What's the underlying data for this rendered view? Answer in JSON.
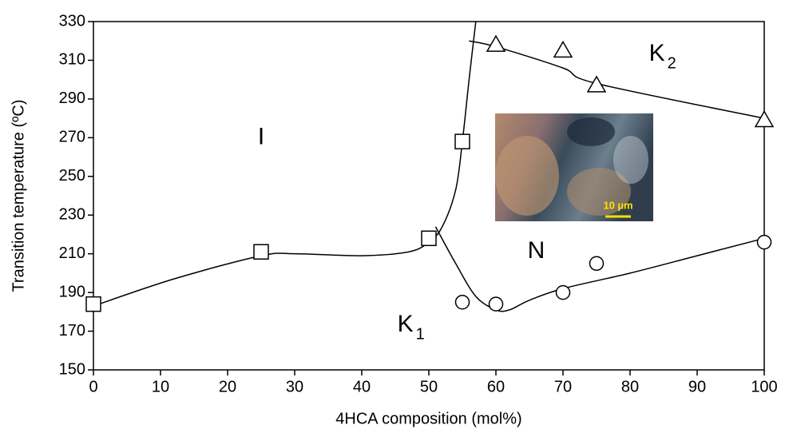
{
  "chart_data": {
    "type": "scatter",
    "xlabel": "4HCA composition (mol%)",
    "ylabel": "Transition temperature (ºC)",
    "xlim": [
      0,
      100
    ],
    "xticks": [
      0,
      10,
      20,
      30,
      40,
      50,
      60,
      70,
      80,
      90,
      100
    ],
    "ylim": [
      150,
      330
    ],
    "yticks": [
      150,
      170,
      190,
      210,
      230,
      250,
      270,
      290,
      310,
      330
    ],
    "series": [
      {
        "marker": "square",
        "color": "#000000",
        "x": [
          0,
          25,
          50,
          55
        ],
        "values": [
          184,
          211,
          218,
          268
        ]
      },
      {
        "marker": "circle",
        "color": "#000000",
        "x": [
          55,
          60,
          70,
          75,
          100
        ],
        "values": [
          185,
          184,
          190,
          205,
          216
        ]
      },
      {
        "marker": "triangle",
        "color": "#000000",
        "x": [
          60,
          70,
          75,
          100
        ],
        "values": [
          318,
          315,
          297,
          279
        ]
      }
    ],
    "lines": [
      {
        "x": [
          0,
          12,
          25,
          30,
          40,
          47,
          50,
          52,
          54,
          55,
          56,
          57
        ],
        "values": [
          183,
          197,
          209,
          210,
          209,
          211,
          216,
          224,
          243,
          268,
          300,
          330
        ]
      },
      {
        "x": [
          51,
          54,
          57,
          60,
          62,
          65,
          70,
          80,
          90,
          100
        ],
        "values": [
          224,
          205,
          188,
          181,
          181,
          186,
          192,
          200,
          209,
          218
        ]
      },
      {
        "x": [
          56,
          60,
          70,
          75,
          100
        ],
        "values": [
          320,
          317,
          306,
          298,
          280
        ]
      }
    ],
    "annotations": [
      {
        "text": "I",
        "x": 25,
        "y": 270
      },
      {
        "text": "N",
        "x": 66,
        "y": 211
      },
      {
        "text": "K",
        "sub": "1",
        "x": 46.5,
        "y": 173
      },
      {
        "text": "K",
        "sub": "2",
        "x": 84,
        "y": 313
      }
    ],
    "inset_label": "10 µm"
  }
}
